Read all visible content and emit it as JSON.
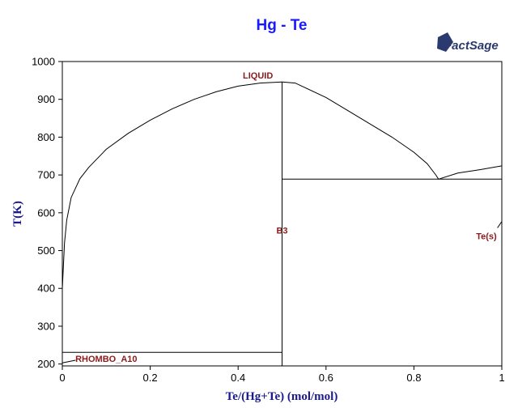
{
  "chart_data": {
    "type": "line",
    "title": "Hg - Te",
    "xlabel": "Te/(Hg+Te) (mol/mol)",
    "ylabel": "T(K)",
    "xlim": [
      0,
      1
    ],
    "ylim": [
      195,
      1000
    ],
    "x_ticks": [
      "0",
      "0.2",
      "0.4",
      "0.6",
      "0.8",
      "1"
    ],
    "y_ticks": [
      "200",
      "300",
      "400",
      "500",
      "600",
      "700",
      "800",
      "900",
      "1000"
    ],
    "grid": false,
    "series": [
      {
        "values": [
          [
            0.0,
            400
          ],
          [
            0.005,
            520
          ],
          [
            0.01,
            580
          ],
          [
            0.02,
            640
          ],
          [
            0.04,
            690
          ],
          [
            0.06,
            720
          ],
          [
            0.1,
            768
          ],
          [
            0.15,
            810
          ],
          [
            0.2,
            845
          ],
          [
            0.25,
            875
          ],
          [
            0.3,
            900
          ],
          [
            0.35,
            920
          ],
          [
            0.4,
            935
          ],
          [
            0.45,
            943
          ],
          [
            0.5,
            946
          ],
          [
            0.53,
            943
          ],
          [
            0.6,
            905
          ],
          [
            0.65,
            870
          ],
          [
            0.7,
            835
          ],
          [
            0.75,
            800
          ],
          [
            0.8,
            760
          ],
          [
            0.83,
            730
          ],
          [
            0.85,
            700
          ],
          [
            0.856,
            689
          ],
          [
            0.9,
            705
          ],
          [
            0.95,
            714
          ],
          [
            1.0,
            724
          ]
        ]
      },
      {
        "values": [
          [
            0.5,
            195
          ],
          [
            0.5,
            946
          ]
        ]
      },
      {
        "values": [
          [
            0.5,
            689
          ],
          [
            1.0,
            689
          ]
        ]
      },
      {
        "values": [
          [
            0.0,
            231
          ],
          [
            0.5,
            231
          ]
        ]
      },
      {
        "values": [
          [
            0.0,
            203
          ],
          [
            0.03,
            210
          ]
        ]
      },
      {
        "values": [
          [
            0.99,
            560
          ],
          [
            1.0,
            577
          ]
        ]
      }
    ],
    "annotations": [
      {
        "text": "LIQUID",
        "x": 0.445,
        "y": 955
      },
      {
        "text": "B3",
        "x": 0.5,
        "y": 545
      },
      {
        "text": "Te(s)",
        "x": 0.965,
        "y": 530
      },
      {
        "text": "RHOMBO_A10",
        "x": 0.1,
        "y": 206
      }
    ]
  },
  "logo": {
    "text": "FactSage"
  }
}
